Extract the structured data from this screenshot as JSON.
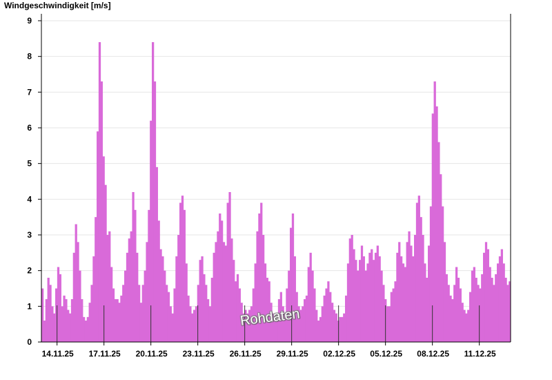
{
  "chart_data": {
    "type": "bar",
    "title": "Windgeschwindigkeit [m/s]",
    "xlabel": "",
    "ylabel": "",
    "ylim": [
      0,
      9
    ],
    "yticks": [
      0,
      1,
      2,
      3,
      4,
      5,
      6,
      7,
      8,
      9
    ],
    "x_start": "13.11.25",
    "x_end": "13.12.25",
    "xticks": [
      "14.11.25",
      "17.11.25",
      "20.11.25",
      "23.11.25",
      "26.11.25",
      "29.11.25",
      "02.12.25",
      "05.12.25",
      "08.12.25",
      "11.12.25"
    ],
    "grid": true,
    "bar_color": "#d96ad9",
    "watermark": "Rohdaten",
    "series": [
      {
        "values": [
          1.5,
          0.6,
          1.2,
          1.8,
          1.6,
          1.0,
          0.8,
          1.5,
          2.1,
          1.9,
          1.0,
          1.3,
          1.2,
          0.9,
          0.8,
          1.2,
          2.5,
          3.3,
          2.8,
          2.0,
          1.2,
          0.7,
          0.6,
          0.7,
          1.1,
          1.6,
          2.4,
          3.5,
          5.9,
          8.4,
          7.3,
          5.2,
          4.4,
          3.0,
          3.1,
          2.1,
          1.5,
          1.2,
          1.2,
          1.1,
          1.3,
          1.6,
          2.0,
          2.5,
          2.9,
          3.1,
          4.2,
          3.7,
          2.5,
          1.6,
          1.1,
          1.6,
          2.0,
          2.8,
          3.7,
          6.2,
          8.4,
          7.3,
          4.9,
          3.4,
          2.6,
          2.4,
          2.0,
          1.6,
          1.4,
          1.0,
          0.8,
          1.5,
          2.4,
          3.0,
          3.9,
          4.1,
          3.7,
          2.2,
          1.3,
          1.0,
          0.8,
          0.9,
          1.0,
          1.6,
          2.3,
          2.4,
          1.9,
          1.6,
          1.2,
          1.0,
          1.8,
          2.5,
          2.8,
          3.1,
          3.6,
          3.4,
          2.8,
          2.7,
          3.9,
          4.2,
          2.9,
          2.3,
          1.7,
          1.9,
          1.5,
          1.1,
          0.8,
          0.9,
          0.8,
          0.9,
          1.0,
          1.5,
          2.2,
          3.1,
          3.6,
          3.9,
          3.0,
          2.2,
          1.8,
          1.7,
          1.1,
          0.8,
          0.7,
          0.6,
          1.2,
          1.4,
          1.0,
          0.8,
          1.5,
          2.0,
          3.2,
          3.6,
          2.4,
          1.4,
          1.0,
          0.9,
          1.0,
          1.2,
          1.3,
          2.1,
          2.5,
          2.0,
          1.5,
          0.9,
          0.6,
          0.7,
          1.0,
          1.3,
          1.5,
          1.7,
          1.4,
          1.1,
          0.9,
          0.8,
          0.6,
          0.7,
          0.7,
          0.8,
          1.3,
          2.2,
          2.9,
          3.0,
          2.6,
          2.3,
          2.0,
          2.3,
          2.7,
          2.4,
          2.0,
          2.2,
          2.5,
          2.6,
          2.3,
          2.5,
          2.7,
          2.4,
          2.0,
          1.6,
          1.2,
          1.0,
          1.0,
          1.4,
          1.5,
          1.7,
          2.5,
          2.8,
          2.4,
          2.2,
          2.1,
          2.8,
          3.1,
          2.7,
          2.4,
          3.0,
          3.9,
          4.1,
          3.5,
          3.0,
          2.2,
          1.8,
          2.7,
          3.8,
          6.4,
          7.3,
          6.6,
          5.6,
          4.7,
          3.8,
          2.8,
          1.9,
          1.6,
          1.3,
          1.2,
          1.6,
          2.1,
          1.8,
          1.5,
          1.1,
          0.9,
          0.8,
          0.9,
          1.4,
          2.0,
          2.1,
          1.8,
          1.6,
          1.5,
          1.9,
          2.5,
          2.8,
          2.6,
          2.1,
          1.8,
          1.6,
          1.9,
          2.2,
          2.4,
          2.6,
          2.2,
          1.8,
          1.6,
          1.7
        ]
      }
    ]
  }
}
